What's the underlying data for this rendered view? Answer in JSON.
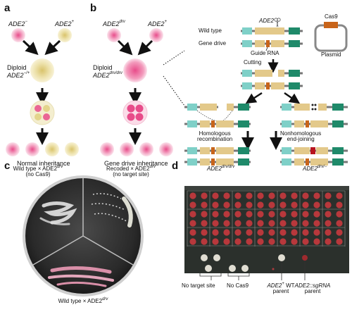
{
  "panel_a": {
    "letter": "a",
    "parent_left_gene": "ADE2",
    "parent_left_sup": "−",
    "parent_right_gene": "ADE2",
    "parent_right_sup": "+",
    "diploid_label": "Diploid",
    "diploid_gene": "ADE2",
    "diploid_sup": "−/+",
    "caption": "Normal inheritance"
  },
  "panel_b": {
    "letter": "b",
    "parent_left_gene": "ADE2",
    "parent_left_sup": "drv",
    "parent_right_gene": "ADE2",
    "parent_right_sup": "+",
    "diploid_label": "Diploid",
    "diploid_gene": "ADE2",
    "diploid_sup": "drv/drv",
    "caption": "Gene drive inheritance"
  },
  "mechanism": {
    "wild_type": "Wild type",
    "gene_drive": "Gene drive",
    "ade2": "ADE2",
    "guide_rna": "Guide RNA",
    "cutting": "Cutting",
    "cas9": "Cas9",
    "plasmid": "Plasmid",
    "hr": "Homologous\nrecombination",
    "nhej": "Nonhomologous\nend-joining",
    "result_left_gene": "ADE2",
    "result_left_sup": "drv/drv",
    "result_right_gene": "ADE2",
    "result_right_sup": "drv/−"
  },
  "panel_c": {
    "letter": "c",
    "top_left_line1": "Wild type × ADE2",
    "top_left_sup": "drv",
    "top_left_line2": "(no Cas9)",
    "top_right_line1": "Recoded × ADE2",
    "top_right_sup": "drv",
    "top_right_line2": "(no target site)",
    "bottom_line1": "Wild type × ADE2",
    "bottom_sup": "drv"
  },
  "panel_d": {
    "letter": "d",
    "labels": {
      "no_target": "No target site",
      "no_cas9": "No Cas9",
      "wt_parent_gene": "ADE2",
      "wt_parent_sup": "+",
      "wt_parent_rest": " WT",
      "wt_parent_line2": "parent",
      "sgrna_parent_line1": "ADE2::sgRNA",
      "sgrna_parent_line2": "parent"
    }
  },
  "colors": {
    "pink": "#e84c8a",
    "cream": "#e8d98a",
    "teal": "#7fd0c8",
    "green": "#1f8a6a",
    "tan": "#e3c98a",
    "orange": "#c8641a",
    "red": "#b8141e"
  }
}
